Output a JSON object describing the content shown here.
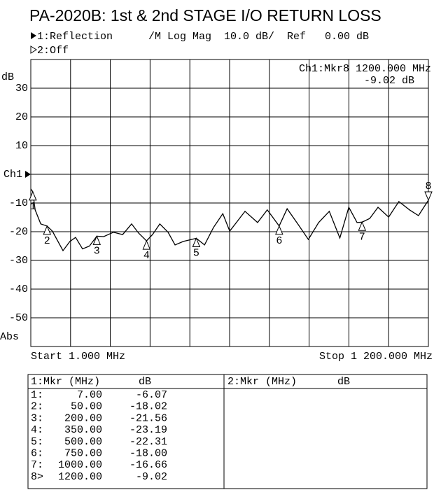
{
  "chart_data": {
    "type": "line",
    "title": "PA-2020B: 1st & 2nd STAGE I/O RETURN LOSS",
    "channel1": "1:Reflection",
    "channel1_settings": "/M Log Mag  10.0 dB/  Ref   0.00 dB",
    "channel2": "2:Off",
    "y_label": "dB",
    "format_label": "Abs",
    "start_label": "Start 1.000 MHz",
    "stop_label": "Stop 1 200.000 MHz",
    "marker_readout": [
      "Ch1:Mkr8 1200.000 MHz",
      "-9.02 dB"
    ],
    "color": "#000000",
    "xlim": [
      1,
      1200
    ],
    "ylim": [
      -60,
      40
    ],
    "xticks": [
      1,
      120.9,
      240.8,
      360.7,
      480.6,
      600.5,
      720.4,
      840.3,
      960.2,
      1080.1,
      1200
    ],
    "yticks": [
      30,
      20,
      10,
      {
        "value": 0,
        "label": "Ch1"
      },
      -10,
      -20,
      -30,
      -40,
      -50
    ],
    "grid": true,
    "x": [
      1,
      7,
      14,
      31,
      50,
      66,
      98,
      119,
      136,
      157,
      178,
      200,
      221,
      250,
      278,
      305,
      326,
      350,
      368,
      390,
      415,
      436,
      461,
      500,
      525,
      552,
      580,
      601,
      647,
      685,
      714,
      750,
      774,
      806,
      838,
      869,
      901,
      933,
      960,
      985,
      1000,
      1023,
      1048,
      1080,
      1111,
      1143,
      1170,
      1200
    ],
    "values": [
      -5.1,
      -6.07,
      -12.4,
      -17.3,
      -18.02,
      -19.8,
      -26.6,
      -23.4,
      -22,
      -26,
      -25,
      -21.56,
      -21.7,
      -20.2,
      -21,
      -17.3,
      -20.5,
      -23.19,
      -21,
      -17.3,
      -20.2,
      -24.6,
      -23.4,
      -22.31,
      -24.6,
      -18.5,
      -13.7,
      -19.8,
      -12.9,
      -16.8,
      -12.4,
      -18,
      -12,
      -17.3,
      -22.7,
      -16.8,
      -12.9,
      -22.2,
      -11.5,
      -16.8,
      -16.66,
      -15.4,
      -11.5,
      -14.9,
      -9.5,
      -12.4,
      -14.4,
      -9.02
    ],
    "markers": {
      "labels": [
        "1",
        "2",
        "3",
        "4",
        "5",
        "6",
        "7",
        "8"
      ],
      "x": [
        7,
        50,
        200,
        350,
        500,
        750,
        1000,
        1200
      ],
      "values": [
        -6.07,
        -18.02,
        -21.56,
        -23.19,
        -22.31,
        -18.0,
        -16.66,
        -9.02
      ]
    }
  },
  "marker_table": {
    "left_header": [
      "1:Mkr (MHz)",
      "dB"
    ],
    "right_header": [
      "2:Mkr (MHz)",
      "dB"
    ],
    "rows": [
      [
        "1:",
        "7.00",
        "-6.07"
      ],
      [
        "2:",
        "50.00",
        "-18.02"
      ],
      [
        "3:",
        "200.00",
        "-21.56"
      ],
      [
        "4:",
        "350.00",
        "-23.19"
      ],
      [
        "5:",
        "500.00",
        "-22.31"
      ],
      [
        "6:",
        "750.00",
        "-18.00"
      ],
      [
        "7:",
        "1000.00",
        "-16.66"
      ],
      [
        "8>",
        "1200.00",
        "-9.02"
      ]
    ]
  }
}
